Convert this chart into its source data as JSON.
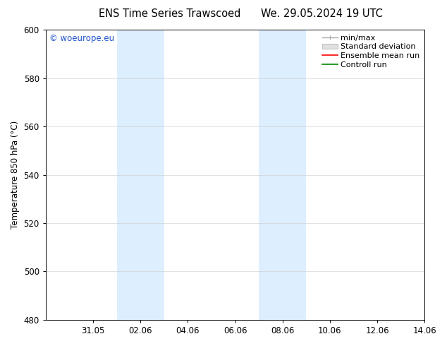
{
  "title_left": "ENS Time Series Trawscoed",
  "title_right": "We. 29.05.2024 19 UTC",
  "ylabel": "Temperature 850 hPa (°C)",
  "ylim": [
    480,
    600
  ],
  "yticks": [
    480,
    500,
    520,
    540,
    560,
    580,
    600
  ],
  "xlim_start": 0,
  "xlim_end": 16,
  "xtick_positions": [
    2,
    4,
    6,
    8,
    10,
    12,
    14,
    16
  ],
  "xtick_labels": [
    "31.05",
    "02.06",
    "04.06",
    "06.06",
    "08.06",
    "10.06",
    "12.06",
    "14.06"
  ],
  "shaded_bands": [
    {
      "start": 3,
      "end": 5
    },
    {
      "start": 9,
      "end": 11
    }
  ],
  "shade_color": "#ddeeff",
  "watermark": "© woeurope.eu",
  "watermark_color": "#2255cc",
  "legend_entries": [
    "min/max",
    "Standard deviation",
    "Ensemble mean run",
    "Controll run"
  ],
  "legend_line_colors": [
    "#aaaaaa",
    "#cccccc",
    "#ff0000",
    "#008800"
  ],
  "background_color": "#ffffff",
  "title_fontsize": 10.5,
  "tick_fontsize": 8.5,
  "ylabel_fontsize": 8.5,
  "watermark_fontsize": 8.5,
  "legend_fontsize": 8
}
